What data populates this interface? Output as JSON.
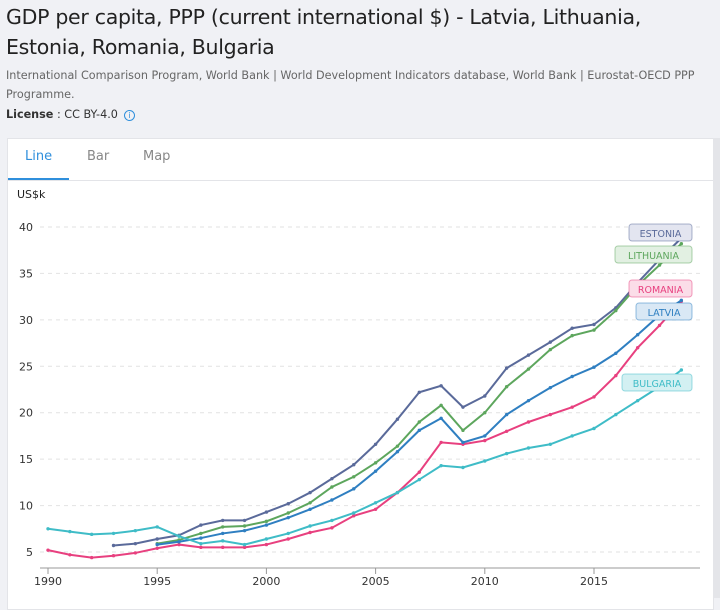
{
  "title": "GDP per capita, PPP (current international $) - Latvia, Lithuania, Estonia, Romania, Bulgaria",
  "source": "International Comparison Program, World Bank | World Development Indicators database, World Bank | Eurostat-OECD PPP Programme.",
  "license_label": "License",
  "license_value": ": CC BY-4.0",
  "info_icon": "i",
  "tabs": [
    {
      "label": "Line"
    },
    {
      "label": "Bar"
    },
    {
      "label": "Map"
    }
  ],
  "chart_data": {
    "type": "line",
    "ylabel": "US$k",
    "ylim": [
      4,
      41
    ],
    "xlim": [
      1990,
      2019.6
    ],
    "yticks": [
      5,
      10,
      15,
      20,
      25,
      30,
      35,
      40
    ],
    "xticks": [
      1990,
      1995,
      2000,
      2005,
      2010,
      2015
    ],
    "grid": true,
    "series": [
      {
        "name": "ESTONIA",
        "color": "#5a6a9a",
        "start": 1993,
        "values": [
          5.7,
          5.9,
          6.4,
          6.8,
          7.9,
          8.4,
          8.4,
          9.3,
          10.2,
          11.4,
          12.9,
          14.4,
          16.6,
          19.3,
          22.2,
          22.9,
          20.6,
          21.8,
          24.8,
          26.2,
          27.6,
          29.1,
          29.5,
          31.3,
          34.0,
          36.5,
          38.8
        ]
      },
      {
        "name": "LITHUANIA",
        "color": "#5da65d",
        "start": 1995,
        "values": [
          5.9,
          6.3,
          7.0,
          7.7,
          7.8,
          8.3,
          9.2,
          10.3,
          12.0,
          13.1,
          14.6,
          16.4,
          19.0,
          20.8,
          18.1,
          20.0,
          22.8,
          24.7,
          26.8,
          28.3,
          28.9,
          31.0,
          33.7,
          35.9,
          38.2
        ]
      },
      {
        "name": "ROMANIA",
        "color": "#e8407f",
        "start": 1990,
        "values": [
          5.2,
          4.7,
          4.4,
          4.6,
          4.9,
          5.4,
          5.8,
          5.5,
          5.5,
          5.5,
          5.8,
          6.4,
          7.1,
          7.6,
          8.9,
          9.6,
          11.4,
          13.6,
          16.8,
          16.6,
          17.0,
          18.0,
          19.0,
          19.8,
          20.6,
          21.7,
          24.0,
          27.0,
          29.4,
          32.0
        ]
      },
      {
        "name": "LATVIA",
        "color": "#2f7fc1",
        "start": 1995,
        "values": [
          5.8,
          6.1,
          6.5,
          7.0,
          7.3,
          7.9,
          8.7,
          9.6,
          10.6,
          11.8,
          13.7,
          15.8,
          18.1,
          19.4,
          16.8,
          17.5,
          19.8,
          21.3,
          22.7,
          23.9,
          24.9,
          26.4,
          28.4,
          30.5,
          32.1
        ]
      },
      {
        "name": "BULGARIA",
        "color": "#3fbcc7",
        "start": 1990,
        "values": [
          7.5,
          7.2,
          6.9,
          7.0,
          7.3,
          7.7,
          6.7,
          5.9,
          6.2,
          5.8,
          6.4,
          7.0,
          7.8,
          8.4,
          9.2,
          10.3,
          11.4,
          12.8,
          14.3,
          14.1,
          14.8,
          15.6,
          16.2,
          16.6,
          17.5,
          18.3,
          19.8,
          21.3,
          22.8,
          24.6
        ]
      }
    ]
  }
}
